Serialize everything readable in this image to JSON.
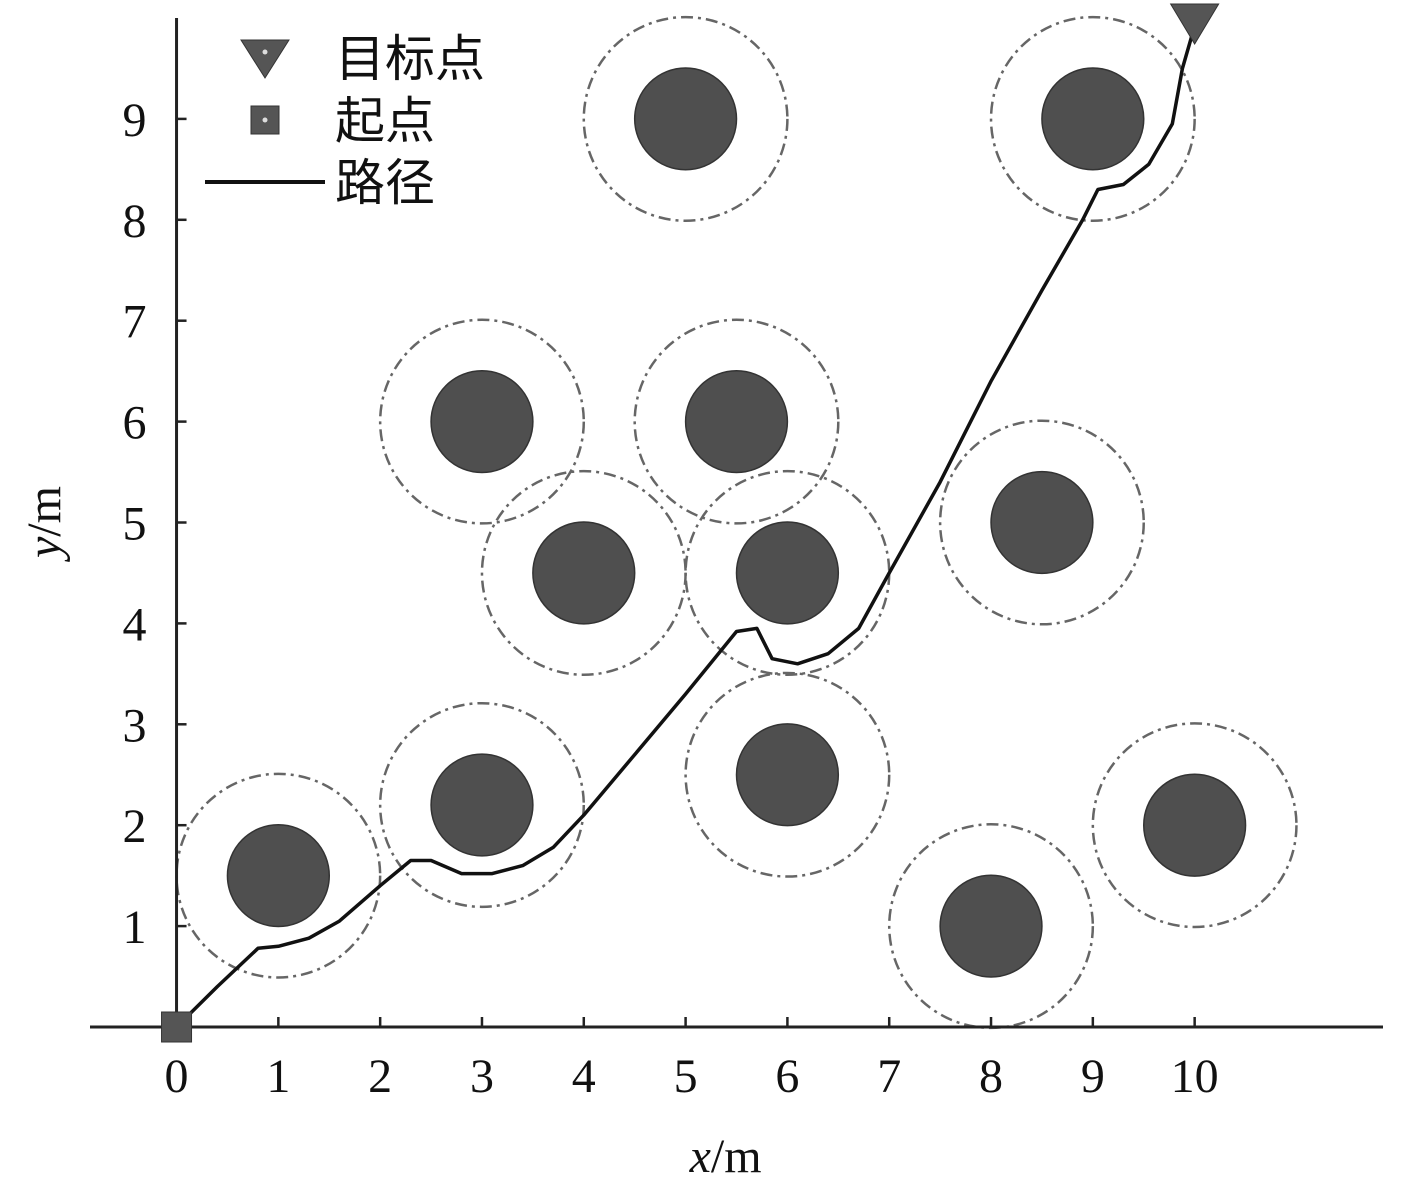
{
  "chart_data": {
    "type": "scatter",
    "title": "",
    "xlabel": {
      "var": "x",
      "unit": "/m"
    },
    "ylabel": {
      "var": "y",
      "unit": "/m"
    },
    "xlim": [
      -0.85,
      11.85
    ],
    "ylim": [
      0,
      10
    ],
    "xticks": [
      "0",
      "1",
      "2",
      "3",
      "4",
      "5",
      "6",
      "7",
      "8",
      "9",
      "10"
    ],
    "yticks": [
      "1",
      "2",
      "3",
      "4",
      "5",
      "6",
      "7",
      "8",
      "9"
    ],
    "grid": false,
    "legend_position": "top-left",
    "legend": [
      {
        "label": "目标点",
        "marker": "triangle-down"
      },
      {
        "label": "起点",
        "marker": "square"
      },
      {
        "label": "路径",
        "marker": "line"
      }
    ],
    "obstacles": [
      {
        "x": 1.0,
        "y": 1.5,
        "r": 0.5,
        "safety_r": 1.0
      },
      {
        "x": 3.0,
        "y": 2.2,
        "r": 0.5,
        "safety_r": 1.0
      },
      {
        "x": 3.0,
        "y": 6.0,
        "r": 0.5,
        "safety_r": 1.0
      },
      {
        "x": 4.0,
        "y": 4.5,
        "r": 0.5,
        "safety_r": 1.0
      },
      {
        "x": 5.0,
        "y": 9.0,
        "r": 0.5,
        "safety_r": 1.0
      },
      {
        "x": 5.5,
        "y": 6.0,
        "r": 0.5,
        "safety_r": 1.0
      },
      {
        "x": 6.0,
        "y": 4.5,
        "r": 0.5,
        "safety_r": 1.0
      },
      {
        "x": 6.0,
        "y": 2.5,
        "r": 0.5,
        "safety_r": 1.0
      },
      {
        "x": 8.0,
        "y": 1.0,
        "r": 0.5,
        "safety_r": 1.0
      },
      {
        "x": 8.5,
        "y": 5.0,
        "r": 0.5,
        "safety_r": 1.0
      },
      {
        "x": 9.0,
        "y": 9.0,
        "r": 0.5,
        "safety_r": 1.0
      },
      {
        "x": 10.0,
        "y": 2.0,
        "r": 0.5,
        "safety_r": 1.0
      }
    ],
    "start": {
      "x": 0,
      "y": 0
    },
    "goal": {
      "x": 10,
      "y": 10
    },
    "path": [
      [
        0,
        0
      ],
      [
        0.4,
        0.4
      ],
      [
        0.8,
        0.78
      ],
      [
        1.0,
        0.8
      ],
      [
        1.3,
        0.88
      ],
      [
        1.6,
        1.05
      ],
      [
        2.0,
        1.4
      ],
      [
        2.3,
        1.65
      ],
      [
        2.5,
        1.65
      ],
      [
        2.8,
        1.52
      ],
      [
        3.1,
        1.52
      ],
      [
        3.4,
        1.6
      ],
      [
        3.7,
        1.78
      ],
      [
        4.0,
        2.1
      ],
      [
        4.5,
        2.7
      ],
      [
        5.0,
        3.3
      ],
      [
        5.5,
        3.92
      ],
      [
        5.7,
        3.95
      ],
      [
        5.85,
        3.65
      ],
      [
        6.1,
        3.6
      ],
      [
        6.4,
        3.7
      ],
      [
        6.7,
        3.95
      ],
      [
        7.0,
        4.5
      ],
      [
        7.5,
        5.4
      ],
      [
        8.0,
        6.4
      ],
      [
        8.5,
        7.3
      ],
      [
        8.9,
        8.0
      ],
      [
        9.05,
        8.3
      ],
      [
        9.3,
        8.35
      ],
      [
        9.55,
        8.55
      ],
      [
        9.78,
        8.95
      ],
      [
        9.88,
        9.5
      ],
      [
        9.98,
        9.85
      ],
      [
        10.0,
        10.0
      ]
    ],
    "colors": {
      "obstacle_fill": "#4f4f4f",
      "safety_ring": "#666666",
      "path": "#111111",
      "axis": "#222222"
    }
  }
}
